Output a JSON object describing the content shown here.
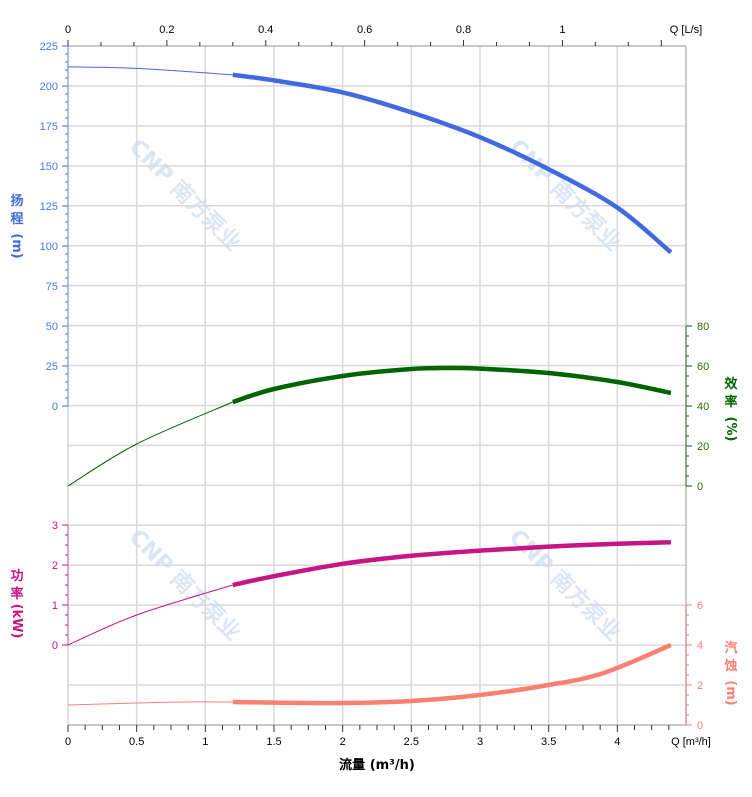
{
  "watermark": {
    "logo_text": "CNP 南方泵业",
    "color": "#dbe6f5"
  },
  "chart_data": {
    "type": "line",
    "grid": true,
    "x": {
      "label": "流量 (m³/h)",
      "end_label": "Q [m³/h]",
      "range": [
        0,
        4.5
      ],
      "ticks": [
        0,
        0.5,
        1,
        1.5,
        2,
        2.5,
        3,
        3.5,
        4
      ],
      "tick_labels": [
        "0",
        "0.5",
        "1",
        "1.5",
        "2",
        "2.5",
        "3",
        "3.5",
        "4"
      ]
    },
    "x_top": {
      "end_label": "Q [L/s]",
      "ticks": [
        0,
        0.2,
        0.4,
        0.6,
        0.8,
        1
      ],
      "tick_labels": [
        "0",
        "0.2",
        "0.4",
        "0.6",
        "0.8",
        "1"
      ]
    },
    "operating_range": [
      1.2,
      4.39
    ],
    "series": [
      {
        "key": "head",
        "axis_title": [
          "扬",
          "程",
          "(m)"
        ],
        "color": "#4169e1",
        "label_color": "#4a78e6",
        "axis": {
          "side": "left",
          "range": [
            0,
            225
          ],
          "ticks": [
            0,
            25,
            50,
            75,
            100,
            125,
            150,
            175,
            200,
            225
          ],
          "tick_labels": [
            "0",
            "25",
            "50",
            "75",
            "100",
            "125",
            "150",
            "175",
            "200",
            "225"
          ]
        },
        "x": [
          0,
          0.5,
          1.2,
          1.5,
          2,
          2.5,
          3,
          3.5,
          4,
          4.39
        ],
        "y": [
          212,
          211,
          207,
          203.5,
          196,
          183.5,
          168,
          148,
          124,
          96
        ]
      },
      {
        "key": "efficiency",
        "axis_title": [
          "效",
          "率",
          "(%)"
        ],
        "color": "#006400",
        "label_color": "#2e6b00",
        "axis": {
          "side": "right",
          "range": [
            0,
            80
          ],
          "ticks": [
            0,
            20,
            40,
            60,
            80
          ],
          "tick_labels": [
            "0",
            "20",
            "40",
            "60",
            "80"
          ]
        },
        "x": [
          0,
          0.5,
          1.2,
          1.5,
          2,
          2.5,
          2.8,
          3,
          3.5,
          4,
          4.39
        ],
        "y": [
          0,
          21,
          42,
          48.5,
          55,
          58.5,
          59,
          58.7,
          56.5,
          52,
          46.5
        ]
      },
      {
        "key": "power",
        "axis_title": [
          "功",
          "率",
          "(kW)"
        ],
        "color": "#c71585",
        "label_color": "#c71585",
        "axis": {
          "side": "left",
          "range": [
            0,
            3
          ],
          "ticks": [
            0,
            1,
            2,
            3
          ],
          "tick_labels": [
            "0",
            "1",
            "2",
            "3"
          ]
        },
        "x": [
          0,
          0.5,
          1.2,
          1.5,
          2,
          2.5,
          3,
          3.5,
          4,
          4.39
        ],
        "y": [
          0,
          0.75,
          1.5,
          1.72,
          2.03,
          2.23,
          2.36,
          2.46,
          2.53,
          2.57
        ]
      },
      {
        "key": "npsh",
        "axis_title": [
          "汽",
          "蚀",
          "(m)"
        ],
        "color": "#fa8072",
        "label_color": "#fa8072",
        "axis": {
          "side": "right",
          "range": [
            0,
            6
          ],
          "ticks": [
            0,
            2,
            4,
            6
          ],
          "tick_labels": [
            "0",
            "2",
            "4",
            "6"
          ]
        },
        "x": [
          0,
          0.5,
          0.8,
          1.2,
          1.5,
          2,
          2.5,
          3,
          3.5,
          3.9,
          4.39
        ],
        "y": [
          1.0,
          1.1,
          1.15,
          1.15,
          1.12,
          1.1,
          1.2,
          1.5,
          2.0,
          2.6,
          4.0
        ]
      }
    ]
  }
}
